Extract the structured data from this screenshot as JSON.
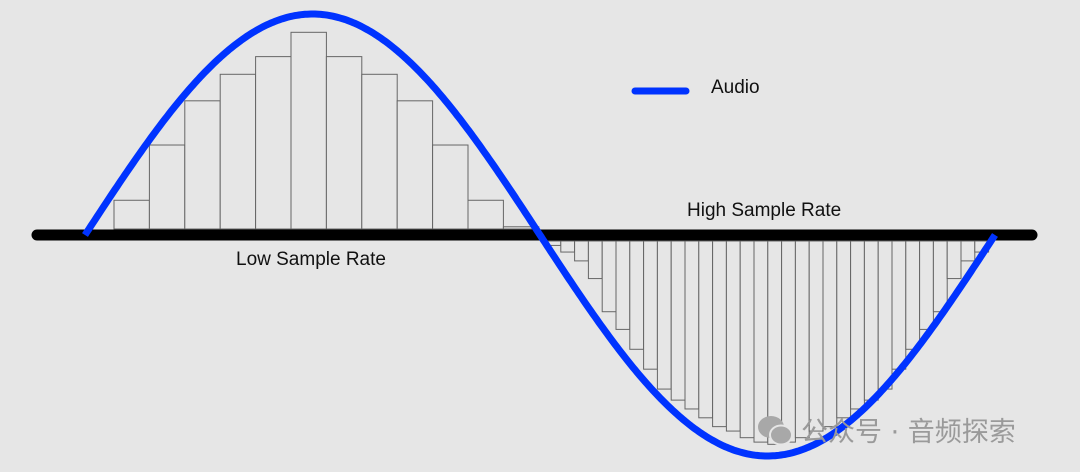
{
  "legend": {
    "label": "Audio",
    "color": "#0033ff"
  },
  "labels": {
    "high": "High Sample Rate",
    "low": "Low Sample Rate"
  },
  "watermark": {
    "icon": "wechat-icon",
    "text": "公众号 · 音频探索"
  },
  "colors": {
    "background": "#e6e6e6",
    "axis": "#000000",
    "bar_stroke": "#666666"
  },
  "chart_data": {
    "type": "bar",
    "waveform": {
      "name": "Audio",
      "shape": "sine",
      "cycles": 1,
      "amplitude": 1
    },
    "low_sample_rate_values": [
      0.13,
      0.38,
      0.58,
      0.7,
      0.78,
      0.89,
      0.78,
      0.7,
      0.58,
      0.38,
      0.13,
      0.01
    ],
    "high_sample_rate_values": [
      -0.02,
      -0.05,
      -0.09,
      -0.17,
      -0.32,
      -0.4,
      -0.49,
      -0.58,
      -0.67,
      -0.72,
      -0.76,
      -0.8,
      -0.84,
      -0.86,
      -0.89,
      -0.91,
      -0.92,
      -0.91,
      -0.89,
      -0.86,
      -0.84,
      -0.8,
      -0.76,
      -0.72,
      -0.67,
      -0.58,
      -0.49,
      -0.4,
      -0.32,
      -0.17,
      -0.09,
      -0.05
    ],
    "grid": false,
    "legend_position": "top-right"
  }
}
